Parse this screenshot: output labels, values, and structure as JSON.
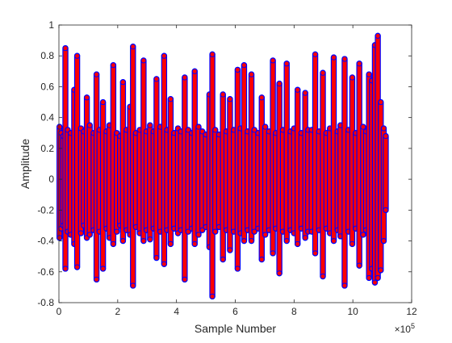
{
  "chart_data": {
    "type": "scatter",
    "xlabel": "Sample Number",
    "ylabel": "Amplitude",
    "x_exponent_label": "×10",
    "x_exponent_power": "5",
    "xlim": [
      0,
      12
    ],
    "ylim": [
      -0.8,
      1.0
    ],
    "x_ticks": [
      "0",
      "2",
      "4",
      "6",
      "8",
      "10",
      "12"
    ],
    "x_tick_values": [
      0,
      2,
      4,
      6,
      8,
      10,
      12
    ],
    "y_ticks": [
      "-0.8",
      "-0.6",
      "-0.4",
      "-0.2",
      "0",
      "0.2",
      "0.4",
      "0.6",
      "0.8",
      "1"
    ],
    "y_tick_values": [
      -0.8,
      -0.6,
      -0.4,
      -0.2,
      0,
      0.2,
      0.4,
      0.6,
      0.8,
      1.0
    ],
    "grid": false,
    "legend": "none",
    "series": [
      {
        "marker": "circle",
        "color": "#0000ff",
        "role": "outer-markers",
        "x": [
          0.02,
          0.08,
          0.15,
          0.22,
          0.3,
          0.4,
          0.52,
          0.62,
          0.75,
          0.85,
          0.95,
          1.05,
          1.18,
          1.28,
          1.38,
          1.5,
          1.62,
          1.72,
          1.85,
          1.97,
          2.08,
          2.18,
          2.3,
          2.42,
          2.52,
          2.62,
          2.75,
          2.88,
          2.98,
          3.1,
          3.22,
          3.32,
          3.45,
          3.58,
          3.68,
          3.8,
          3.92,
          4.05,
          4.15,
          4.28,
          4.4,
          4.52,
          4.62,
          4.75,
          4.88,
          5.0,
          5.12,
          5.22,
          5.32,
          5.45,
          5.58,
          5.7,
          5.82,
          5.95,
          6.08,
          6.18,
          6.3,
          6.42,
          6.55,
          6.65,
          6.78,
          6.9,
          7.02,
          7.15,
          7.28,
          7.38,
          7.5,
          7.62,
          7.75,
          7.88,
          8.0,
          8.12,
          8.25,
          8.38,
          8.48,
          8.6,
          8.72,
          8.85,
          8.98,
          9.1,
          9.22,
          9.35,
          9.48,
          9.58,
          9.72,
          9.85,
          9.98,
          10.1,
          10.22,
          10.35,
          10.45,
          10.55,
          10.65,
          10.75,
          10.85,
          10.95,
          11.05,
          11.12
        ],
        "y_max": [
          0.34,
          0.3,
          0.28,
          0.85,
          0.32,
          0.3,
          0.58,
          0.8,
          0.33,
          0.31,
          0.53,
          0.35,
          0.3,
          0.68,
          0.32,
          0.5,
          0.31,
          0.35,
          0.74,
          0.3,
          0.28,
          0.63,
          0.32,
          0.47,
          0.86,
          0.3,
          0.32,
          0.77,
          0.31,
          0.35,
          0.31,
          0.65,
          0.34,
          0.8,
          0.32,
          0.52,
          0.3,
          0.33,
          0.31,
          0.66,
          0.32,
          0.3,
          0.7,
          0.34,
          0.31,
          0.29,
          0.55,
          0.81,
          0.32,
          0.29,
          0.55,
          0.31,
          0.52,
          0.32,
          0.71,
          0.33,
          0.74,
          0.31,
          0.68,
          0.32,
          0.3,
          0.53,
          0.34,
          0.31,
          0.77,
          0.3,
          0.62,
          0.32,
          0.75,
          0.31,
          0.33,
          0.58,
          0.3,
          0.56,
          0.32,
          0.32,
          0.81,
          0.31,
          0.69,
          0.3,
          0.33,
          0.79,
          0.31,
          0.35,
          0.78,
          0.32,
          0.66,
          0.3,
          0.75,
          0.34,
          0.31,
          0.68,
          0.64,
          0.87,
          0.93,
          0.5,
          0.33,
          0.28
        ],
        "y_min": [
          -0.38,
          -0.32,
          -0.3,
          -0.58,
          -0.34,
          -0.36,
          -0.42,
          -0.57,
          -0.35,
          -0.3,
          -0.38,
          -0.36,
          -0.33,
          -0.65,
          -0.34,
          -0.58,
          -0.32,
          -0.38,
          -0.42,
          -0.34,
          -0.3,
          -0.4,
          -0.33,
          -0.36,
          -0.69,
          -0.31,
          -0.35,
          -0.4,
          -0.33,
          -0.39,
          -0.32,
          -0.51,
          -0.34,
          -0.55,
          -0.33,
          -0.42,
          -0.32,
          -0.35,
          -0.33,
          -0.65,
          -0.34,
          -0.32,
          -0.42,
          -0.36,
          -0.33,
          -0.31,
          -0.44,
          -0.76,
          -0.34,
          -0.31,
          -0.52,
          -0.33,
          -0.46,
          -0.34,
          -0.58,
          -0.35,
          -0.4,
          -0.33,
          -0.4,
          -0.34,
          -0.32,
          -0.52,
          -0.36,
          -0.33,
          -0.48,
          -0.32,
          -0.61,
          -0.34,
          -0.4,
          -0.33,
          -0.35,
          -0.42,
          -0.32,
          -0.38,
          -0.34,
          -0.34,
          -0.48,
          -0.33,
          -0.63,
          -0.32,
          -0.35,
          -0.4,
          -0.33,
          -0.37,
          -0.69,
          -0.34,
          -0.42,
          -0.32,
          -0.56,
          -0.36,
          -0.33,
          -0.64,
          -0.58,
          -0.67,
          -0.64,
          -0.59,
          -0.4,
          -0.2
        ]
      },
      {
        "marker": "circle",
        "color": "#ff0000",
        "role": "inner-markers"
      }
    ]
  }
}
